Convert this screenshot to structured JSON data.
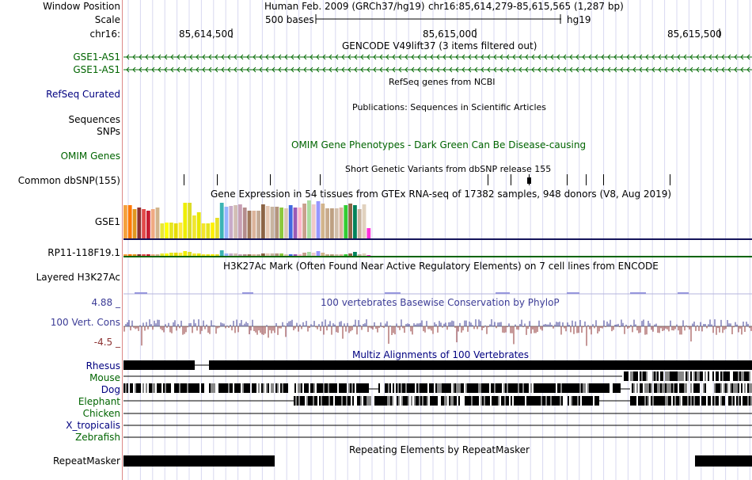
{
  "header": {
    "assembly": "Human Feb. 2009 (GRCh37/hg19)",
    "position": "chr16:85,614,279-85,615,565 (1,287 bp)",
    "scale_text": "500 bases",
    "scale_db": "hg19",
    "coords": [
      "85,614,500",
      "85,615,000",
      "85,615,500"
    ]
  },
  "side_labels": {
    "window_position": "Window Position",
    "scale": "Scale",
    "chrom": "chr16:",
    "gse1_as1_a": "GSE1-AS1",
    "gse1_as1_b": "GSE1-AS1",
    "refseq": "RefSeq Curated",
    "sequences": "Sequences",
    "snps": "SNPs",
    "omim": "OMIM Genes",
    "dbsnp": "Common dbSNP(155)",
    "gse1": "GSE1",
    "rp11": "RP11-118F19.1",
    "h3k27ac": "Layered H3K27Ac",
    "cons_max": "4.88 _",
    "cons": "100 Vert. Cons",
    "cons_min": "-4.5 _",
    "rhesus": "Rhesus",
    "mouse": "Mouse",
    "dog": "Dog",
    "elephant": "Elephant",
    "chicken": "Chicken",
    "xtrop": "X_tropicalis",
    "zebrafish": "Zebrafish",
    "repeatmasker": "RepeatMasker"
  },
  "track_titles": {
    "gencode": "GENCODE V49lift37 (3 items filtered out)",
    "refseq": "RefSeq genes from NCBI",
    "publications": "Publications: Sequences in Scientific Articles",
    "omim": "OMIM Gene Phenotypes - Dark Green Can Be Disease-causing",
    "dbsnp": "Short Genetic Variants from dbSNP release 155",
    "gtex": "Gene Expression in 54 tissues from GTEx RNA-seq of 17382 samples, 948 donors (V8, Aug 2019)",
    "h3k27ac": "H3K27Ac Mark (Often Found Near Active Regulatory Elements) on 7 cell lines from ENCODE",
    "phylop": "100 vertebrates Basewise Conservation by PhyloP",
    "multiz": "Multiz Alignments of 100 Vertebrates",
    "repeatmasker": "Repeating Elements by RepeatMasker"
  },
  "colors": {
    "gencode": "#0a6e0a",
    "cons_pos": "#3c3c96",
    "cons_neg": "#8c3232",
    "omim": "#006400",
    "gtex_gse1_line": "#14145a",
    "gtex_rp11_line": "#006400"
  },
  "gtex_bar_colors": [
    "#f5a03c",
    "#ff7800",
    "#e1961e",
    "#8c3232",
    "#e14b4b",
    "#c81e32",
    "#f0aa82",
    "#d2b48c",
    "#e8e834",
    "#ffff00",
    "#e6e61e",
    "#e6dc00",
    "#ffeb3c",
    "#eeee00",
    "#dcdc28",
    "#f0e630",
    "#e8e800",
    "#f5e628",
    "#e6e61e",
    "#fff000",
    "#e8e02a",
    "#3cb4b4",
    "#96b4ff",
    "#c8aac8",
    "#d2beb4",
    "#c8a0b4",
    "#b48c8c",
    "#a0785a",
    "#dcb49b",
    "#c3aa96",
    "#8c6446",
    "#e6c8b4",
    "#c8b4a0",
    "#b4967d",
    "#8cc83c",
    "#dcc8b4",
    "#4169e1",
    "#9b59b6",
    "#ffb4c8",
    "#c8a08c",
    "#aadca0",
    "#f0c8c8",
    "#9696ff",
    "#d2b48c",
    "#c8aa8c",
    "#bea082",
    "#d2beaa",
    "#dcb4a0",
    "#32cd32",
    "#8c6446",
    "#00825a",
    "#c8b4a0",
    "#e1d2be",
    "#ff32dc"
  ],
  "gtex_gse1_values": [
    42,
    42,
    37,
    39,
    37,
    35,
    37,
    39,
    19,
    20,
    20,
    19,
    20,
    45,
    45,
    29,
    33,
    19,
    19,
    20,
    26,
    45,
    40,
    41,
    42,
    43,
    39,
    35,
    35,
    35,
    43,
    41,
    40,
    40,
    39,
    38,
    42,
    39,
    39,
    44,
    48,
    43,
    47,
    44,
    38,
    38,
    38,
    39,
    42,
    44,
    42,
    37,
    43,
    13
  ],
  "gtex_rp11_values": [
    2,
    2,
    2,
    2,
    2,
    2,
    2,
    2,
    3,
    3,
    4,
    4,
    4,
    6,
    5,
    3,
    3,
    2,
    2,
    2,
    2,
    7,
    3,
    3,
    3,
    2,
    2,
    2,
    2,
    2,
    3,
    3,
    3,
    3,
    3,
    2,
    2,
    2,
    2,
    4,
    5,
    4,
    6,
    4,
    2,
    2,
    2,
    2,
    2,
    3,
    5,
    2,
    3,
    1
  ]
}
